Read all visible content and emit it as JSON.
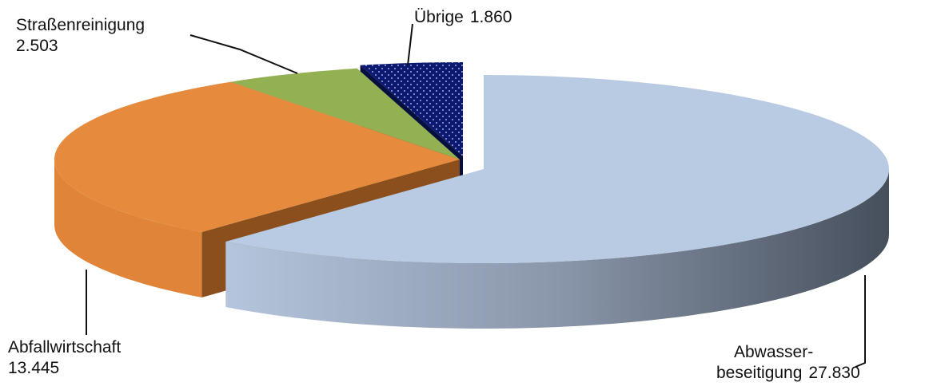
{
  "chart_data": {
    "type": "pie3d",
    "categories": [
      "Abwasser-\nbeseitigung",
      "Abfallwirtschaft",
      "Straßenreinigung",
      "Übrige"
    ],
    "values": [
      27830,
      13445,
      2503,
      1860
    ],
    "value_labels": [
      "27.830",
      "13.445",
      "2.503",
      "1.860"
    ],
    "colors": [
      "#b9cbe2",
      "#e68a3d",
      "#93b152",
      "#0b1a70"
    ]
  }
}
